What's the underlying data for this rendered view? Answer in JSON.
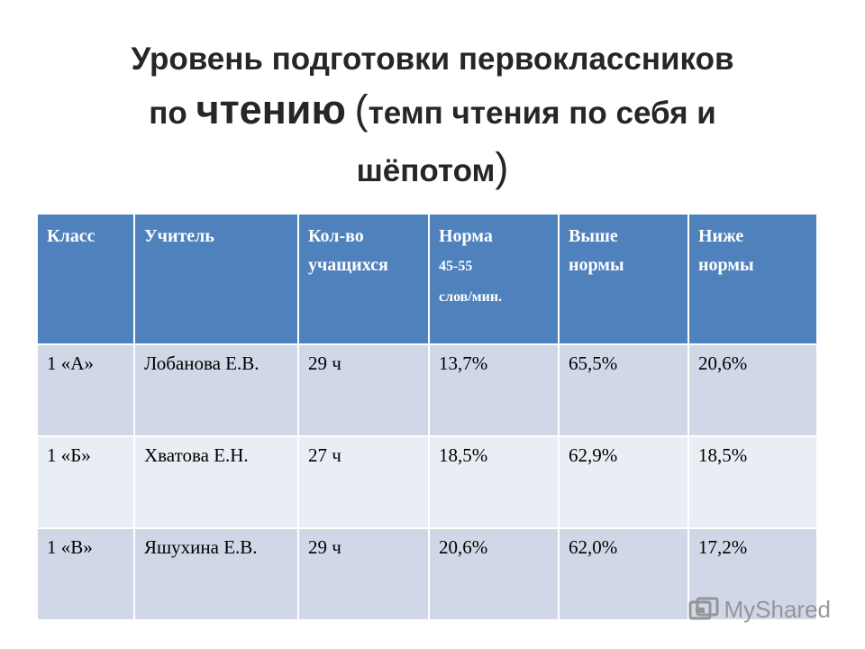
{
  "title": {
    "line1": "Уровень подготовки первоклассников",
    "line2_prefix": "по ",
    "line2_big": "чтению",
    "line2_paren": "(",
    "line2_suffix": "темп чтения по себя и",
    "line3_text": "шёпотом",
    "line3_paren": ")"
  },
  "table": {
    "headers": {
      "class": "Класс",
      "teacher": "Учитель",
      "count_line1": "Кол-во",
      "count_line2": "учащихся",
      "norm_line1": "Норма",
      "norm_line2": "45-55",
      "norm_line3": "слов/мин.",
      "above_line1": "Выше",
      "above_line2": "нормы",
      "below_line1": "Ниже",
      "below_line2": "нормы"
    },
    "rows": [
      {
        "class": "1 «А»",
        "teacher": "Лобанова Е.В.",
        "count": "29 ч",
        "norm": "13,7%",
        "above": "65,5%",
        "below": "20,6%"
      },
      {
        "class": "1 «Б»",
        "teacher": "Хватова Е.Н.",
        "count": "27 ч",
        "norm": "18,5%",
        "above": "62,9%",
        "below": "18,5%"
      },
      {
        "class": "1 «В»",
        "teacher": "Яшухина Е.В.",
        "count": "29 ч",
        "norm": "20,6%",
        "above": "62,0%",
        "below": "17,2%"
      }
    ]
  },
  "watermark": {
    "text": "MyShared",
    "icon": "myshared-logo-icon"
  }
}
